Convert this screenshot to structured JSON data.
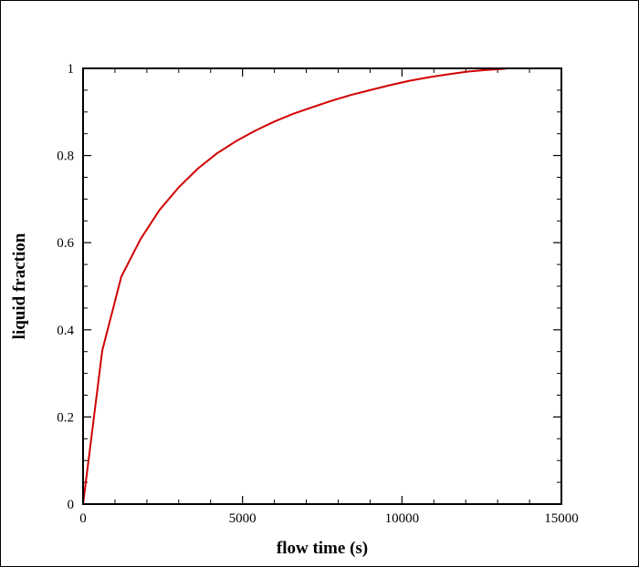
{
  "chart_data": {
    "type": "line",
    "title": "",
    "xlabel": "flow time (s)",
    "ylabel": "liquid fraction",
    "xlim": [
      0,
      15000
    ],
    "ylim": [
      0,
      1
    ],
    "x_ticks": [
      0,
      5000,
      10000,
      15000
    ],
    "x_tick_labels": [
      "0",
      "5000",
      "10000",
      "15000"
    ],
    "y_ticks": [
      0,
      0.2,
      0.4,
      0.6,
      0.8,
      1
    ],
    "y_tick_labels": [
      "0",
      "0.2",
      "0.4",
      "0.6",
      "0.8",
      "1"
    ],
    "x_minor_step": 1000,
    "y_minor_step": 0.05,
    "grid": false,
    "series": [
      {
        "color": "#d00000",
        "x": [
          0,
          600,
          1200,
          1800,
          2400,
          3000,
          3600,
          4200,
          4800,
          5400,
          6000,
          6600,
          7200,
          7800,
          8400,
          9000,
          9600,
          10200,
          10800,
          11400,
          12000,
          12600,
          13200,
          13300
        ],
        "y": [
          0,
          0.352,
          0.522,
          0.608,
          0.675,
          0.727,
          0.77,
          0.805,
          0.833,
          0.857,
          0.878,
          0.896,
          0.911,
          0.926,
          0.939,
          0.95,
          0.961,
          0.971,
          0.979,
          0.986,
          0.992,
          0.996,
          0.999,
          1.0
        ]
      }
    ]
  }
}
